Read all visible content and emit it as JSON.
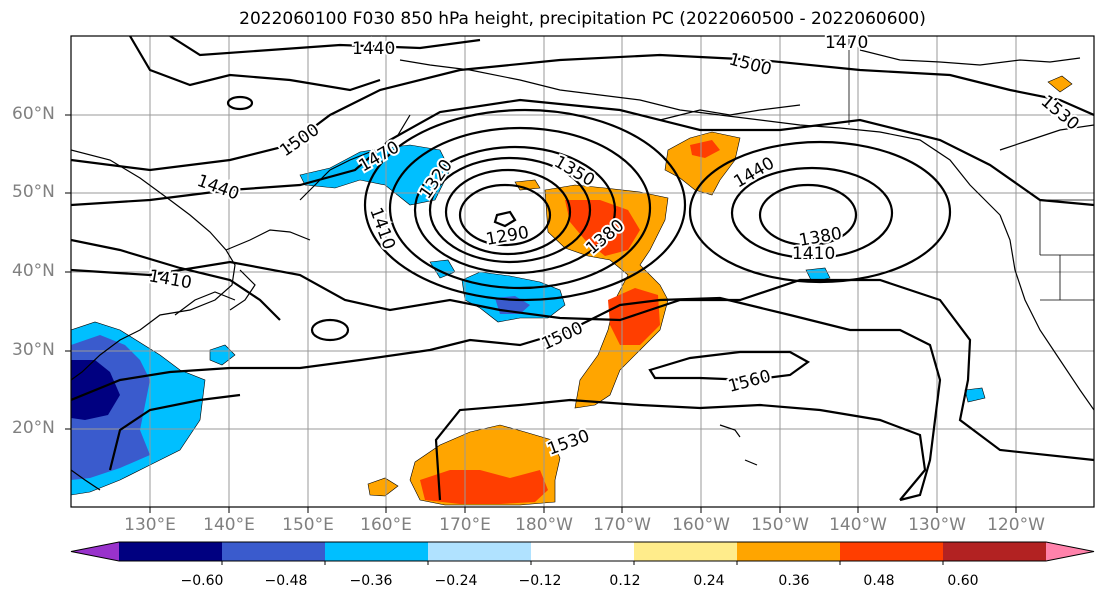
{
  "title": "2022060100 F030 850 hPa height, precipitation PC (2022060500 - 2022060600)",
  "lat_labels": [
    "60°N",
    "50°N",
    "40°N",
    "30°N",
    "20°N"
  ],
  "lon_labels": [
    "130°E",
    "140°E",
    "150°E",
    "160°E",
    "170°E",
    "180°W",
    "170°W",
    "160°W",
    "150°W",
    "140°W",
    "130°W",
    "120°W"
  ],
  "contour_labels": [
    "1440",
    "1470",
    "1500",
    "1530",
    "1500",
    "1470",
    "1440",
    "1320",
    "1350",
    "1410",
    "1290",
    "1380",
    "1440",
    "1380",
    "1410",
    "1410",
    "1500",
    "1560",
    "1530"
  ],
  "colorbar": {
    "ticks": [
      "−0.60",
      "−0.48",
      "−0.36",
      "−0.24",
      "−0.12",
      "0.12",
      "0.24",
      "0.36",
      "0.48",
      "0.60"
    ],
    "colors": [
      "#9932cc",
      "#000080",
      "#3a5bcd",
      "#00bfff",
      "#b0e2ff",
      "#ffffff",
      "#ffec8b",
      "#ffa500",
      "#ff3e00",
      "#b22222",
      "#ff82ab"
    ]
  }
}
